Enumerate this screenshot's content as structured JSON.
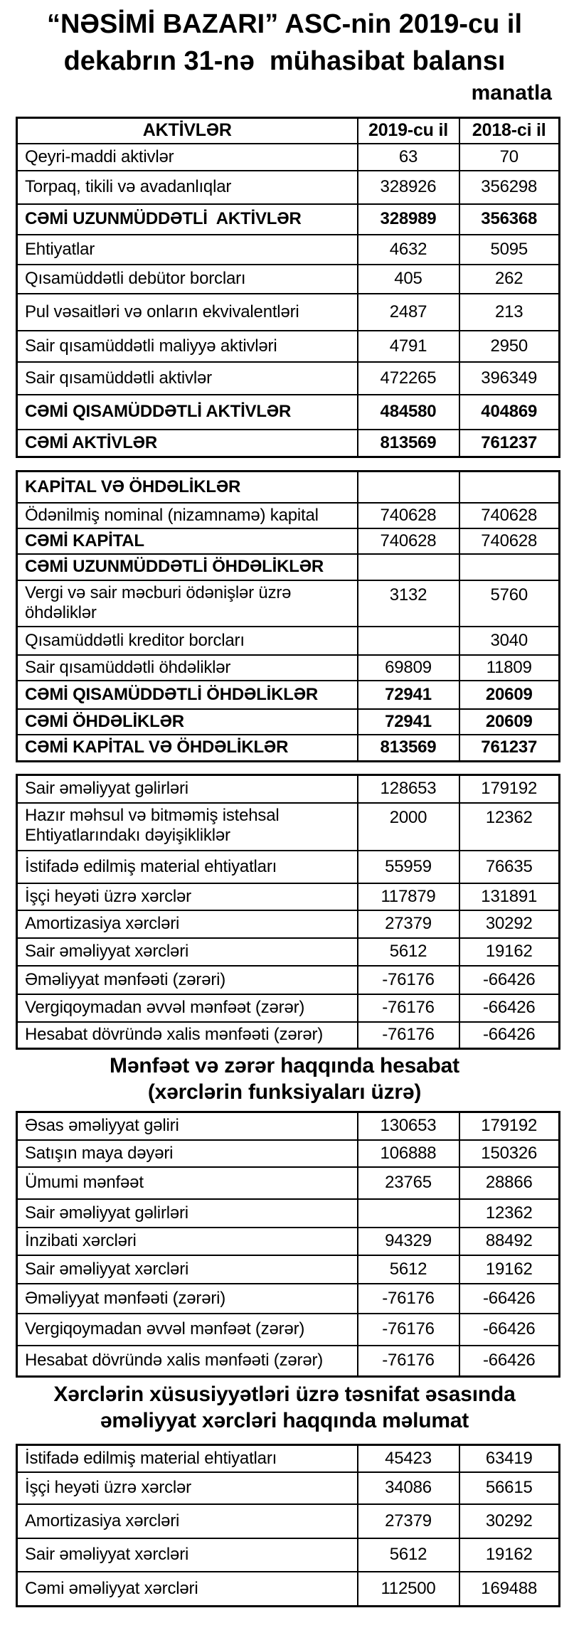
{
  "doc": {
    "title_line1": "“NƏSİMİ BAZARI” ASC-nin 2019-cu il",
    "title_line2": "dekabrın 31-nə  mühasibat balansı",
    "currency_note": "manatla"
  },
  "balance_assets": {
    "column_headers": [
      "AKTİVLƏR",
      "2019-cu il",
      "2018-ci il"
    ],
    "rows": [
      {
        "label": "Qeyri-maddi aktivlər",
        "y2019": "63",
        "y2018": "70",
        "bold": false
      },
      {
        "label": "Torpaq, tikili və avadanlıqlar",
        "y2019": "328926",
        "y2018": "356298",
        "bold": false
      },
      {
        "label": "CƏMİ UZUNMÜDDƏTLİ  AKTİVLƏR",
        "y2019": "328989",
        "y2018": "356368",
        "bold": true
      },
      {
        "label": "Ehtiyatlar",
        "y2019": "4632",
        "y2018": "5095",
        "bold": false
      },
      {
        "label": "Qısamüddətli debütor borcları",
        "y2019": "405",
        "y2018": "262",
        "bold": false
      },
      {
        "label": "Pul vəsaitləri və onların ekvivalentləri",
        "y2019": "2487",
        "y2018": "213",
        "bold": false
      },
      {
        "label": "Sair qısamüddətli maliyyə aktivləri",
        "y2019": "4791",
        "y2018": "2950",
        "bold": false
      },
      {
        "label": "Sair qısamüddətli aktivlər",
        "y2019": "472265",
        "y2018": "396349",
        "bold": false
      },
      {
        "label": "CƏMİ QISAMÜDDƏTLİ AKTİVLƏR",
        "y2019": "484580",
        "y2018": "404869",
        "bold": true
      },
      {
        "label": "CƏMİ AKTİVLƏR",
        "y2019": "813569",
        "y2018": "761237",
        "bold": true
      }
    ]
  },
  "balance_equity_liabilities": {
    "rows": [
      {
        "label": "KAPİTAL VƏ ÖHDƏLİKLƏR",
        "y2019": "",
        "y2018": "",
        "bold": "label"
      },
      {
        "label": "Ödənilmiş nominal (nizamnamə) kapital",
        "y2019": "740628",
        "y2018": "740628",
        "bold": false
      },
      {
        "label": "CƏMİ KAPİTAL",
        "y2019": "740628",
        "y2018": "740628",
        "bold": "label"
      },
      {
        "label": "CƏMİ UZUNMÜDDƏTLİ ÖHDƏLİKLƏR",
        "y2019": "",
        "y2018": "",
        "bold": "label"
      },
      {
        "label": "Vergi və sair məcburi ödənişlər üzrə öhdəliklər",
        "y2019": "3132",
        "y2018": "5760",
        "bold": false
      },
      {
        "label": "Qısamüddətli kreditor borcları",
        "y2019": "",
        "y2018": "3040",
        "bold": false
      },
      {
        "label": "Sair qısamüddətli öhdəliklər",
        "y2019": "69809",
        "y2018": "11809",
        "bold": false
      },
      {
        "label": "CƏMİ QISAMÜDDƏTLİ ÖHDƏLİKLƏR",
        "y2019": "72941",
        "y2018": "20609",
        "bold": true
      },
      {
        "label": "CƏMİ ÖHDƏLİKLƏR",
        "y2019": "72941",
        "y2018": "20609",
        "bold": true
      },
      {
        "label": "CƏMİ KAPİTAL VƏ ÖHDƏLİKLƏR",
        "y2019": "813569",
        "y2018": "761237",
        "bold": true
      }
    ]
  },
  "pl_by_nature": {
    "rows": [
      {
        "label": "Sair əməliyyat gəlirləri",
        "y2019": "128653",
        "y2018": "179192",
        "bold": false
      },
      {
        "label": "Hazır məhsul və bitməmiş istehsal Ehtiyatlarındakı dəyişikliklər",
        "y2019": "2000",
        "y2018": "12362",
        "bold": false
      },
      {
        "label": "İstifadə edilmiş material ehtiyatları",
        "y2019": "55959",
        "y2018": "76635",
        "bold": false
      },
      {
        "label": "İşçi heyəti üzrə xərclər",
        "y2019": "117879",
        "y2018": "131891",
        "bold": false
      },
      {
        "label": "Amortizasiya xərcləri",
        "y2019": "27379",
        "y2018": "30292",
        "bold": false
      },
      {
        "label": "Sair əməliyyat xərcləri",
        "y2019": "5612",
        "y2018": "19162",
        "bold": false
      },
      {
        "label": "Əməliyyat mənfəəti (zərəri)",
        "y2019": "-76176",
        "y2018": "-66426",
        "bold": false
      },
      {
        "label": "Vergiqoymadan əvvəl mənfəət (zərər)",
        "y2019": "-76176",
        "y2018": "-66426",
        "bold": false
      },
      {
        "label": "Hesabat dövründə xalis mənfəəti (zərər)",
        "y2019": "-76176",
        "y2018": "-66426",
        "bold": false
      }
    ]
  },
  "pl_function_heading": {
    "line1": "Mənfəət və zərər haqqında hesabat",
    "line2": "(xərclərin funksiyaları üzrə)"
  },
  "pl_by_function": {
    "rows": [
      {
        "label": "Əsas əməliyyat gəliri",
        "y2019": "130653",
        "y2018": "179192",
        "bold": false
      },
      {
        "label": "Satışın maya dəyəri",
        "y2019": "106888",
        "y2018": "150326",
        "bold": false
      },
      {
        "label": "Ümumi mənfəət",
        "y2019": "23765",
        "y2018": "28866",
        "bold": false
      },
      {
        "label": "Sair əməliyyat gəlirləri",
        "y2019": "",
        "y2018": "12362",
        "bold": false
      },
      {
        "label": "İnzibati xərcləri",
        "y2019": "94329",
        "y2018": "88492",
        "bold": false
      },
      {
        "label": "Sair əməliyyat xərcləri",
        "y2019": "5612",
        "y2018": "19162",
        "bold": false
      },
      {
        "label": "Əməliyyat mənfəəti (zərəri)",
        "y2019": "-76176",
        "y2018": "-66426",
        "bold": false
      },
      {
        "label": "Vergiqoymadan əvvəl mənfəət (zərər)",
        "y2019": "-76176",
        "y2018": "-66426",
        "bold": false
      },
      {
        "label": "Hesabat dövründə xalis mənfəəti (zərər)",
        "y2019": "-76176",
        "y2018": "-66426",
        "bold": false
      }
    ]
  },
  "opex_heading": {
    "line1": "Xərclərin xüsusiyyətləri üzrə təsnifat əsasında",
    "line2": "əməliyyat xərcləri haqqında məlumat"
  },
  "opex_by_nature": {
    "rows": [
      {
        "label": "İstifadə edilmiş material ehtiyatları",
        "y2019": "45423",
        "y2018": "63419",
        "bold": false
      },
      {
        "label": "İşçi heyəti üzrə xərclər",
        "y2019": "34086",
        "y2018": "56615",
        "bold": false
      },
      {
        "label": "Amortizasiya xərcləri",
        "y2019": "27379",
        "y2018": "30292",
        "bold": false
      },
      {
        "label": "Sair əməliyyat xərcləri",
        "y2019": "5612",
        "y2018": "19162",
        "bold": false
      },
      {
        "label": "Cəmi əməliyyat xərcləri",
        "y2019": "112500",
        "y2018": "169488",
        "bold": false
      }
    ]
  }
}
